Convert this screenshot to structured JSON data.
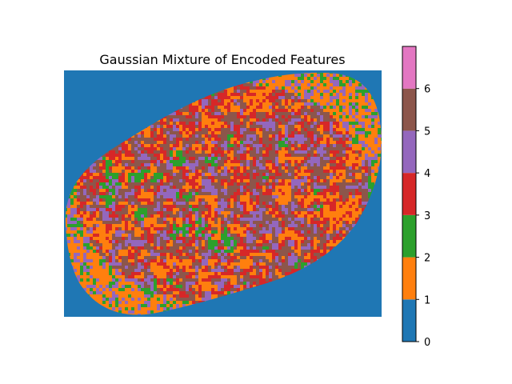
{
  "chart_data": {
    "type": "heatmap",
    "title": "Gaussian Mixture of Encoded Features",
    "xlabel": "",
    "ylabel": "",
    "axes_visible": false,
    "colormap": "tab10 (discrete, 7 levels)",
    "classes": [
      0,
      1,
      2,
      3,
      4,
      5,
      6
    ],
    "class_colors": [
      "#1f77b4",
      "#ff7f0e",
      "#2ca02c",
      "#d62728",
      "#9467bd",
      "#8c564b",
      "#e377c2"
    ],
    "background_class": 0,
    "colorbar": {
      "range": [
        0,
        7
      ],
      "ticks": [
        0,
        1,
        2,
        3,
        4,
        5,
        6
      ],
      "tick_labels": [
        "0",
        "1",
        "2",
        "3",
        "4",
        "5",
        "6"
      ]
    }
  }
}
